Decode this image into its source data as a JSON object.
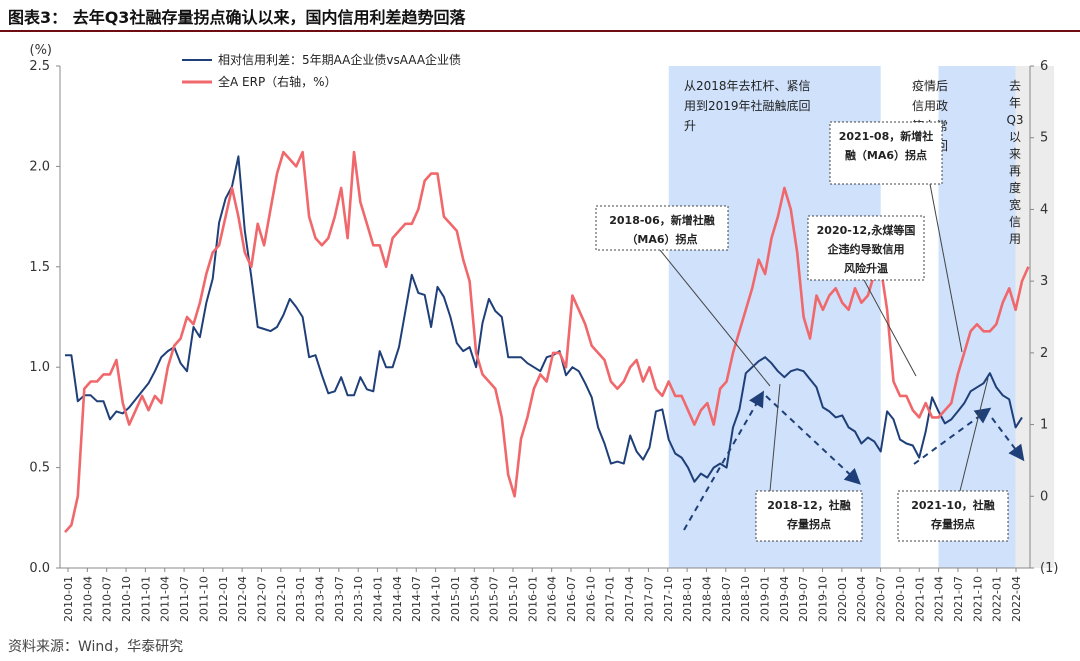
{
  "title": "图表3：  去年Q3社融存量拐点确认以来，国内信用利差趋势回落",
  "source": "资料来源：Wind，华泰研究",
  "chart_data": {
    "type": "line",
    "left_axis": {
      "label": "(%)",
      "ylim": [
        0,
        2.5
      ],
      "ticks": [
        "0.0",
        "0.5",
        "1.0",
        "1.5",
        "2.0",
        "2.5"
      ],
      "tick_values": [
        0,
        0.5,
        1.0,
        1.5,
        2.0,
        2.5
      ]
    },
    "right_axis": {
      "label": "(1)",
      "ylim": [
        -1,
        6
      ],
      "ticks": [
        "(1)",
        "0",
        "1",
        "2",
        "3",
        "4",
        "5",
        "6"
      ],
      "tick_values": [
        -1,
        0,
        1,
        2,
        3,
        4,
        5,
        6
      ]
    },
    "x_tick_labels": [
      "2010-01",
      "2010-04",
      "2010-07",
      "2010-10",
      "2011-01",
      "2011-04",
      "2011-07",
      "2011-10",
      "2012-01",
      "2012-04",
      "2012-07",
      "2012-10",
      "2013-01",
      "2013-04",
      "2013-07",
      "2013-10",
      "2014-01",
      "2014-04",
      "2014-07",
      "2014-10",
      "2015-01",
      "2015-04",
      "2015-07",
      "2015-10",
      "2016-01",
      "2016-04",
      "2016-07",
      "2016-10",
      "2017-01",
      "2017-04",
      "2017-07",
      "2017-10",
      "2018-01",
      "2018-04",
      "2018-07",
      "2018-10",
      "2019-01",
      "2019-04",
      "2019-07",
      "2019-10",
      "2020-01",
      "2020-04",
      "2020-07",
      "2020-10",
      "2021-01",
      "2021-04",
      "2021-07",
      "2021-10",
      "2022-01",
      "2022-04"
    ],
    "series": [
      {
        "name": "相对信用利差：5年期AA企业债vsAAA企业债",
        "axis": "left",
        "color": "#1f3f78",
        "values": [
          1.06,
          1.06,
          0.83,
          0.86,
          0.86,
          0.83,
          0.83,
          0.74,
          0.78,
          0.77,
          0.8,
          0.84,
          0.88,
          0.92,
          0.98,
          1.05,
          1.08,
          1.1,
          1.02,
          0.98,
          1.2,
          1.15,
          1.32,
          1.44,
          1.72,
          1.84,
          1.9,
          2.05,
          1.68,
          1.45,
          1.2,
          1.19,
          1.18,
          1.2,
          1.26,
          1.34,
          1.3,
          1.25,
          1.05,
          1.06,
          0.96,
          0.87,
          0.88,
          0.95,
          0.86,
          0.86,
          0.95,
          0.89,
          0.88,
          1.08,
          1.0,
          1.0,
          1.1,
          1.28,
          1.46,
          1.37,
          1.36,
          1.2,
          1.4,
          1.35,
          1.25,
          1.12,
          1.08,
          1.1,
          1.0,
          1.22,
          1.34,
          1.28,
          1.25,
          1.05,
          1.05,
          1.05,
          1.02,
          1.0,
          0.98,
          1.05,
          1.06,
          1.08,
          0.96,
          1.0,
          0.98,
          0.92,
          0.85,
          0.7,
          0.62,
          0.52,
          0.53,
          0.52,
          0.66,
          0.58,
          0.54,
          0.6,
          0.78,
          0.79,
          0.64,
          0.57,
          0.55,
          0.5,
          0.43,
          0.47,
          0.45,
          0.5,
          0.52,
          0.5,
          0.7,
          0.79,
          0.97,
          1.0,
          1.03,
          1.05,
          1.02,
          0.98,
          0.95,
          0.98,
          0.99,
          0.98,
          0.94,
          0.9,
          0.8,
          0.78,
          0.75,
          0.76,
          0.7,
          0.68,
          0.62,
          0.65,
          0.63,
          0.58,
          0.78,
          0.74,
          0.64,
          0.62,
          0.61,
          0.55,
          0.68,
          0.85,
          0.78,
          0.72,
          0.74,
          0.78,
          0.82,
          0.88,
          0.9,
          0.92,
          0.97,
          0.9,
          0.86,
          0.84,
          0.7,
          0.75
        ]
      },
      {
        "name": "全A ERP（右轴，%）",
        "axis": "right",
        "color": "#f0686b",
        "values": [
          -0.5,
          -0.4,
          0.0,
          1.5,
          1.6,
          1.6,
          1.7,
          1.7,
          1.9,
          1.3,
          1.0,
          1.2,
          1.4,
          1.2,
          1.4,
          1.3,
          1.8,
          2.1,
          2.2,
          2.5,
          2.4,
          2.7,
          3.1,
          3.4,
          3.5,
          3.9,
          4.3,
          3.9,
          3.4,
          3.2,
          3.8,
          3.5,
          4.0,
          4.5,
          4.8,
          4.7,
          4.6,
          4.8,
          3.9,
          3.6,
          3.5,
          3.6,
          3.9,
          4.3,
          3.6,
          4.8,
          4.1,
          3.8,
          3.5,
          3.5,
          3.2,
          3.6,
          3.7,
          3.8,
          3.8,
          4.0,
          4.4,
          4.5,
          4.5,
          3.9,
          3.8,
          3.7,
          3.3,
          3.0,
          2.0,
          1.7,
          1.6,
          1.5,
          1.1,
          0.3,
          0.0,
          0.8,
          1.1,
          1.5,
          1.7,
          1.6,
          2.0,
          2.0,
          1.8,
          2.8,
          2.6,
          2.4,
          2.1,
          2.0,
          1.9,
          1.6,
          1.5,
          1.6,
          1.8,
          1.9,
          1.6,
          1.8,
          1.5,
          1.4,
          1.6,
          1.4,
          1.4,
          1.2,
          1.0,
          1.2,
          1.3,
          1.0,
          1.5,
          1.6,
          2.0,
          2.3,
          2.6,
          2.9,
          3.3,
          3.1,
          3.6,
          3.9,
          4.3,
          4.0,
          3.4,
          2.5,
          2.2,
          2.8,
          2.6,
          2.8,
          2.9,
          2.7,
          2.6,
          2.9,
          2.7,
          2.8,
          3.1,
          3.2,
          2.6,
          1.6,
          1.4,
          1.4,
          1.2,
          1.1,
          1.3,
          1.1,
          1.1,
          1.2,
          1.3,
          1.7,
          2.0,
          2.3,
          2.4,
          2.3,
          2.3,
          2.4,
          2.7,
          2.9,
          2.6,
          3.0,
          3.2
        ]
      }
    ],
    "shaded_periods": [
      {
        "from_index": 94,
        "to_index": 127,
        "label": "从2018年去杠杆、紧信用到2019年社融触底回升"
      },
      {
        "from_index": 136,
        "to_index": 148,
        "label": "疫情后信用政策向常态化回"
      },
      {
        "from_index": 148,
        "to_index": 154,
        "label": "去年Q3以来再度宽信用"
      }
    ],
    "annotations": [
      "2018-06，新增社融（MA6）拐点",
      "2018-12，社融存量拐点",
      "2020-12，永煤等国企违约导致信用风险升温",
      "2021-08，新增社融（MA6）拐点",
      "2021-10，社融存量拐点"
    ]
  }
}
